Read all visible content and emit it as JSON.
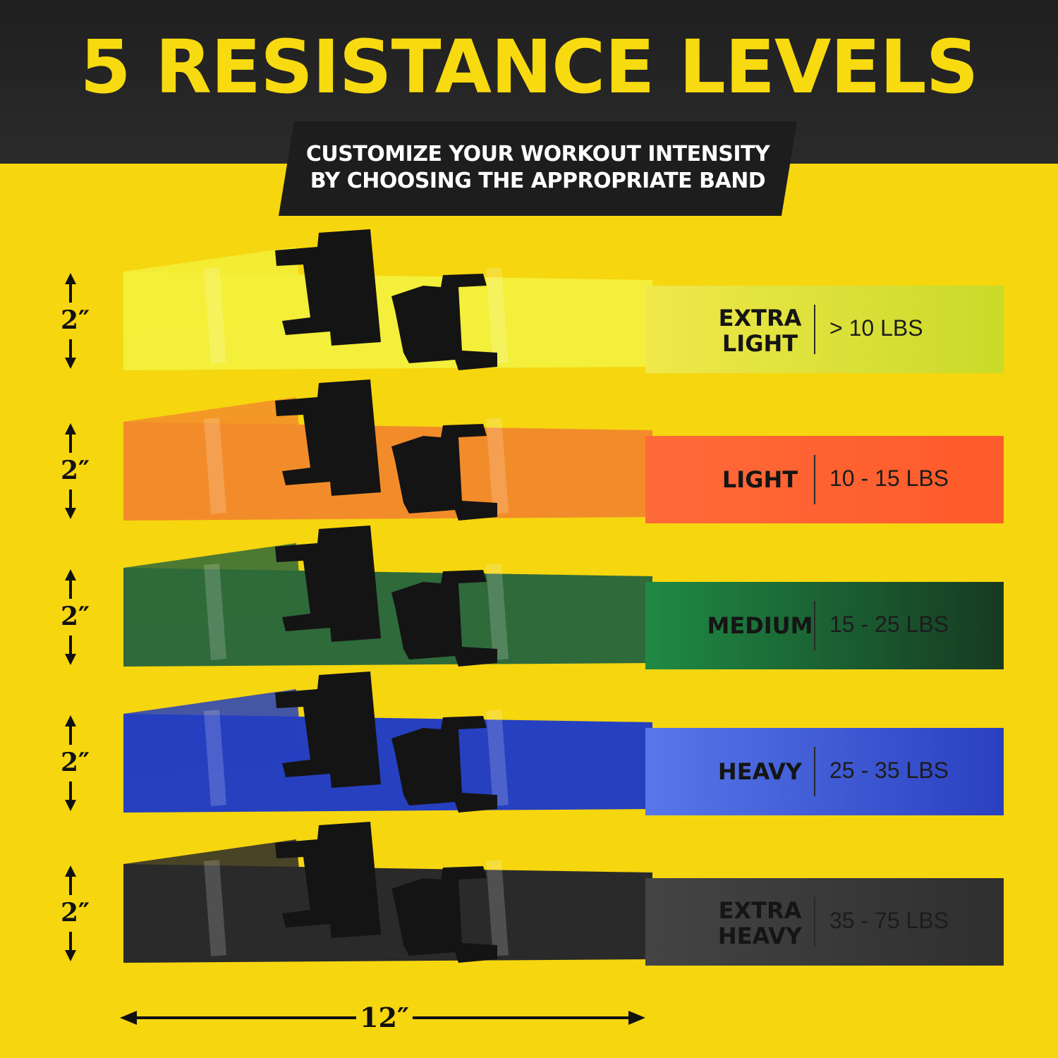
{
  "header": {
    "title": "5 RESISTANCE LEVELS",
    "subtitle_line1": "CUSTOMIZE YOUR WORKOUT INTENSITY",
    "subtitle_line2": "BY CHOOSING THE APPROPRIATE BAND"
  },
  "bands": [
    {
      "name": "EXTRA\nLIGHT",
      "range": "> 10 LBS",
      "width_label": "2″",
      "band_color": "#f3ef3a",
      "strip_from": "#f0e84a",
      "strip_to": "#c9da2a"
    },
    {
      "name": "LIGHT",
      "range": "10 - 15 LBS",
      "width_label": "2″",
      "band_color": "#f28c2a",
      "strip_from": "#ff6a3a",
      "strip_to": "#ff5a2a"
    },
    {
      "name": "MEDIUM",
      "range": "15 - 25 LBS",
      "width_label": "2″",
      "band_color": "#2f6a3a",
      "strip_from": "#1f8a44",
      "strip_to": "#173a22"
    },
    {
      "name": "HEAVY",
      "range": "25 - 35 LBS",
      "width_label": "2″",
      "band_color": "#2640c0",
      "strip_from": "#5878ea",
      "strip_to": "#2a40c0"
    },
    {
      "name": "EXTRA\nHEAVY",
      "range": "35 - 75 LBS",
      "width_label": "2″",
      "band_color": "#2a2a2a",
      "strip_from": "#444444",
      "strip_to": "#2f2f2f"
    }
  ],
  "length_label": "12″",
  "colors": {
    "background": "#f6d60f",
    "headline": "#f8da10",
    "buckle": "#141414"
  }
}
